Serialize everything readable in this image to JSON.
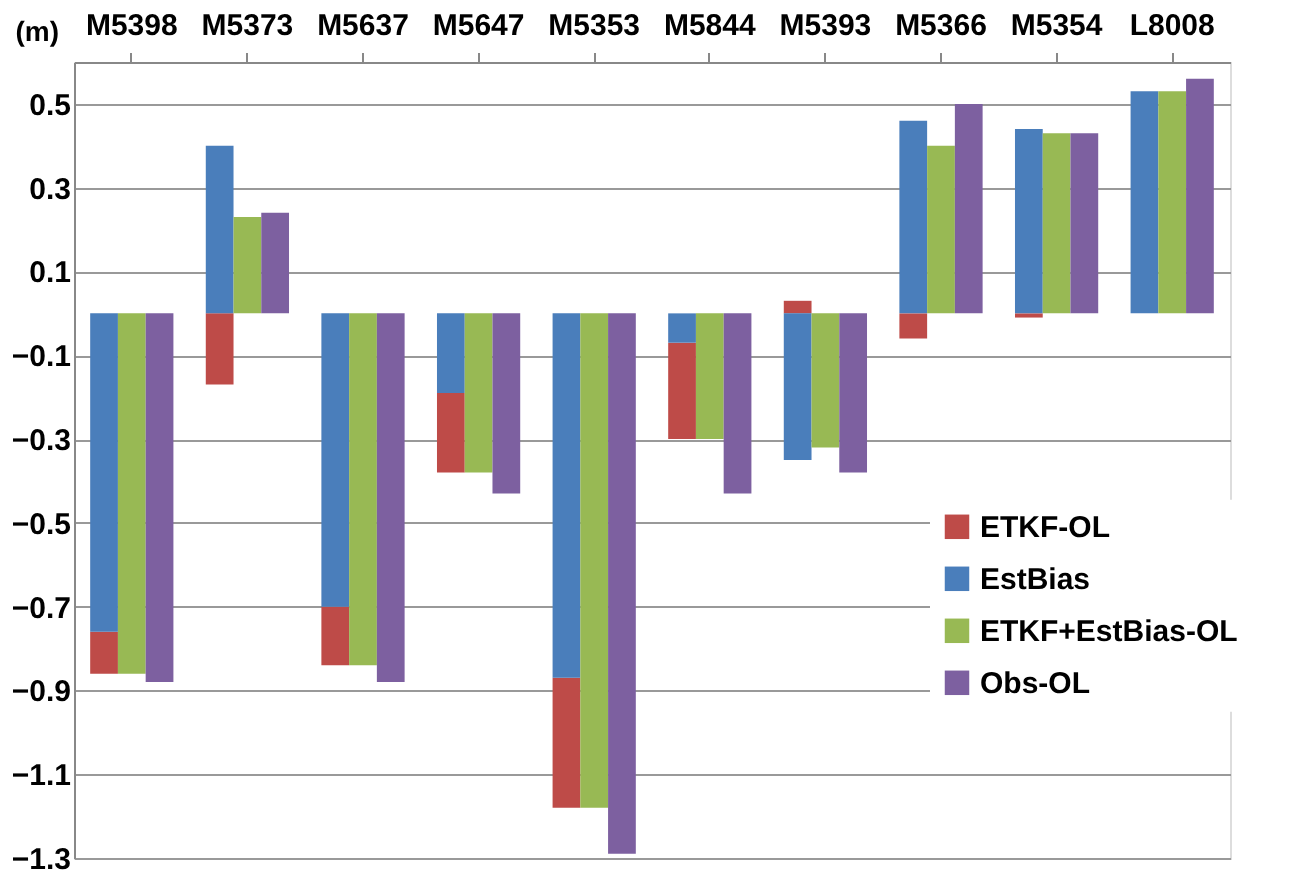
{
  "chart_data": {
    "type": "bar",
    "ylabel": "(m)",
    "categories": [
      "M5398",
      "M5373",
      "M5637",
      "M5647",
      "M5353",
      "M5844",
      "M5393",
      "M5366",
      "M5354",
      "L8008"
    ],
    "series": [
      {
        "name": "ETKF-OL",
        "color": "#be4b48",
        "values": [
          -0.1,
          -0.17,
          -0.14,
          -0.19,
          -0.31,
          -0.23,
          0.03,
          -0.06,
          -0.01,
          null
        ],
        "base": [
          -0.76,
          0,
          -0.7,
          -0.19,
          -0.87,
          -0.07,
          0,
          0,
          0,
          null
        ]
      },
      {
        "name": "EstBias",
        "color": "#4a7ebb",
        "values": [
          -0.76,
          0.4,
          -0.7,
          -0.19,
          -0.87,
          -0.07,
          -0.35,
          0.46,
          0.44,
          0.53
        ]
      },
      {
        "name": "ETKF+EstBias-OL",
        "color": "#98b954",
        "values": [
          -0.86,
          0.23,
          -0.84,
          -0.38,
          -1.18,
          -0.3,
          -0.32,
          0.4,
          0.43,
          0.53
        ]
      },
      {
        "name": "Obs-OL",
        "color": "#7d60a0",
        "values": [
          -0.88,
          0.24,
          -0.88,
          -0.43,
          -1.29,
          -0.43,
          -0.38,
          0.5,
          0.43,
          0.56
        ]
      }
    ],
    "ylim": [
      -1.3,
      0.6
    ],
    "yticks": [
      -1.3,
      -1.1,
      -0.9,
      -0.7,
      -0.5,
      -0.3,
      -0.1,
      0.1,
      0.3,
      0.5
    ],
    "grid": "y",
    "legend": "right"
  }
}
